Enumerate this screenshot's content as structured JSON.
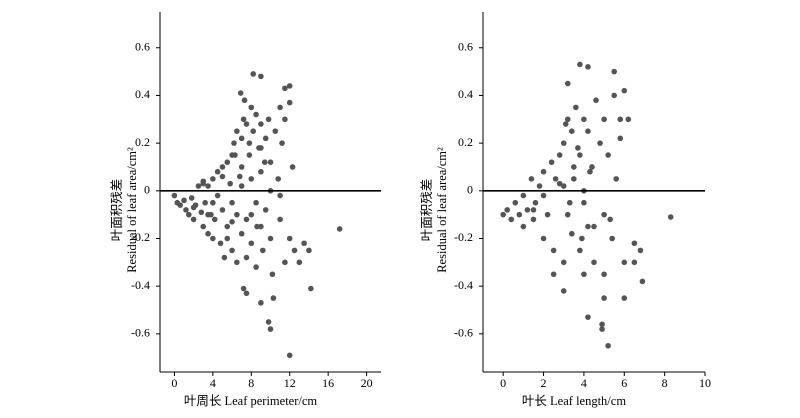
{
  "chart_data": [
    {
      "type": "scatter",
      "xlabel": "叶周长 Leaf perimeter/cm",
      "ylabel": [
        "叶面积残差",
        "Residual of leaf area/cm²"
      ],
      "xlim": [
        -1.5,
        21.5
      ],
      "xticks": [
        0,
        4,
        8,
        12,
        16,
        20
      ],
      "ylim": [
        -0.76,
        0.75
      ],
      "yticks": [
        0.6,
        0.4,
        0.2,
        0,
        -0.2,
        -0.4,
        -0.6
      ],
      "hline": 0,
      "color": "#555555",
      "x": [
        0,
        0.3,
        0.6,
        1,
        1.2,
        1.5,
        1.8,
        2,
        2.2,
        2.5,
        2.8,
        3,
        3,
        3.2,
        3.5,
        3.5,
        3.8,
        4,
        4,
        4.2,
        4.5,
        4.5,
        4.8,
        5,
        5,
        5.2,
        5.5,
        5.5,
        5.8,
        6,
        6,
        6,
        6.2,
        6.5,
        6.5,
        6.5,
        6.8,
        7,
        7,
        7,
        7.2,
        7.5,
        7.5,
        7.5,
        7.8,
        8,
        8,
        8,
        8.2,
        8.5,
        8.5,
        8.5,
        8.8,
        9,
        9,
        9,
        9.2,
        9.5,
        9.5,
        9.8,
        10,
        10,
        10.2,
        10.5,
        10.8,
        11,
        11,
        11.2,
        11.5,
        11.5,
        12,
        12,
        12.3,
        12.5,
        13,
        13.5,
        14,
        14.2,
        17.2,
        8.2,
        9,
        12,
        11.5,
        6.9,
        7.3,
        7.5,
        7.2,
        9,
        10,
        9.8,
        10.3,
        12,
        3,
        4,
        5,
        6,
        7,
        8,
        9,
        10,
        11,
        2,
        3.5,
        5.5,
        6.3,
        7.8,
        8.6,
        9.4
      ],
      "y": [
        -0.02,
        -0.05,
        -0.06,
        -0.04,
        -0.08,
        -0.1,
        -0.03,
        -0.12,
        -0.06,
        0.02,
        -0.09,
        -0.15,
        0.04,
        -0.05,
        -0.18,
        0.02,
        -0.1,
        0.05,
        -0.2,
        -0.12,
        0.08,
        -0.02,
        -0.22,
        0.1,
        -0.08,
        -0.28,
        0.12,
        -0.15,
        0.03,
        0.15,
        -0.05,
        -0.25,
        0.2,
        0.25,
        -0.1,
        -0.3,
        0.06,
        0.22,
        -0.18,
        0.02,
        0.3,
        0.28,
        -0.12,
        -0.28,
        0.15,
        0.35,
        0.05,
        -0.22,
        0.25,
        0.32,
        -0.05,
        -0.32,
        0.18,
        0.28,
        -0.15,
        0.08,
        -0.25,
        0.22,
        -0.08,
        0.3,
        0.12,
        -0.2,
        -0.35,
        0.25,
        0.05,
        0.35,
        -0.12,
        0.2,
        0.3,
        -0.3,
        0.37,
        -0.2,
        0.1,
        -0.25,
        -0.3,
        -0.22,
        -0.25,
        -0.41,
        -0.16,
        0.49,
        0.48,
        0.44,
        0.43,
        0.41,
        0.38,
        -0.43,
        -0.41,
        -0.47,
        -0.58,
        -0.55,
        -0.45,
        -0.69,
        0.03,
        -0.05,
        0.06,
        -0.13,
        0.1,
        -0.1,
        0.18,
        0.0,
        -0.02,
        -0.07,
        -0.1,
        -0.2,
        0.15,
        0.2,
        -0.15,
        0.12
      ]
    },
    {
      "type": "scatter",
      "xlabel": "叶长 Leaf length/cm",
      "ylabel": [
        "叶面积残差",
        "Residual of leaf area/cm²"
      ],
      "xlim": [
        -1,
        10
      ],
      "xticks": [
        0,
        2,
        4,
        6,
        8,
        10
      ],
      "ylim": [
        -0.76,
        0.75
      ],
      "yticks": [
        0.6,
        0.4,
        0.2,
        0,
        -0.2,
        -0.4,
        -0.6
      ],
      "hline": 0,
      "color": "#555555",
      "x": [
        0,
        0.2,
        0.4,
        0.6,
        0.8,
        1,
        1,
        1.2,
        1.4,
        1.5,
        1.6,
        1.8,
        2,
        2,
        2.2,
        2.4,
        2.5,
        2.6,
        2.8,
        3,
        3,
        3,
        3.2,
        3.2,
        3.4,
        3.4,
        3.5,
        3.6,
        3.8,
        3.8,
        4,
        4,
        4,
        4.2,
        4.2,
        4.4,
        4.5,
        4.6,
        4.8,
        5,
        5,
        5,
        5.2,
        5.4,
        5.5,
        5.6,
        5.8,
        6,
        6,
        6.2,
        6.5,
        6.8,
        8.3,
        6.9,
        5.2,
        4.9,
        4.9,
        5,
        4.2,
        3.8,
        4.2,
        5.5,
        3.2,
        6,
        6.5,
        2.5,
        3,
        3.5,
        4,
        4.5,
        2,
        2.8,
        3.3,
        3.7,
        4.3,
        1.5,
        5.3,
        5.8,
        3.1,
        3.9
      ],
      "y": [
        -0.1,
        -0.08,
        -0.12,
        -0.05,
        -0.1,
        -0.02,
        -0.15,
        -0.08,
        0.05,
        -0.12,
        -0.05,
        0.02,
        0.08,
        -0.2,
        -0.1,
        0.12,
        -0.25,
        0.05,
        0.15,
        -0.3,
        0.2,
        0.02,
        0.3,
        -0.1,
        0.25,
        -0.18,
        0.05,
        0.35,
        -0.25,
        0.15,
        0.3,
        -0.05,
        -0.35,
        0.25,
        -0.15,
        0.1,
        -0.3,
        0.38,
        0.2,
        0.3,
        -0.1,
        -0.35,
        0.15,
        -0.2,
        0.4,
        0.05,
        0.3,
        0.42,
        -0.3,
        0.3,
        -0.22,
        -0.25,
        -0.11,
        -0.38,
        -0.65,
        -0.58,
        -0.56,
        -0.45,
        -0.53,
        0.53,
        0.52,
        0.5,
        0.45,
        -0.45,
        -0.3,
        -0.35,
        -0.42,
        0.1,
        0.0,
        -0.15,
        -0.02,
        0.03,
        -0.05,
        0.18,
        0.08,
        -0.08,
        -0.12,
        0.22,
        0.28,
        -0.2
      ]
    }
  ]
}
